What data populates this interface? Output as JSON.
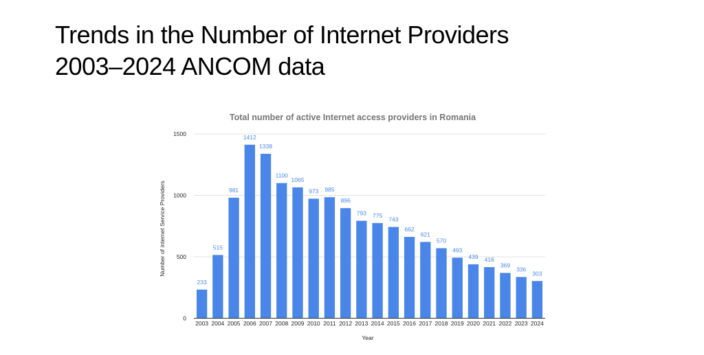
{
  "slide": {
    "title_line1": "Trends in the Number of Internet Providers",
    "title_line2": "2003–2024 ANCOM data"
  },
  "chart_data": {
    "type": "bar",
    "title": "Total number of active Internet access providers in Romania",
    "xlabel": "Year",
    "ylabel": "Number of internet Service Providers",
    "categories": [
      "2003",
      "2004",
      "2005",
      "2006",
      "2007",
      "2008",
      "2009",
      "2010",
      "2011",
      "2012",
      "2013",
      "2014",
      "2015",
      "2016",
      "2017",
      "2018",
      "2019",
      "2020",
      "2021",
      "2022",
      "2023",
      "2024"
    ],
    "values": [
      233,
      515,
      981,
      1412,
      1338,
      1100,
      1065,
      973,
      985,
      896,
      793,
      775,
      743,
      662,
      621,
      570,
      493,
      439,
      416,
      369,
      336,
      303
    ],
    "ylim": [
      0,
      1500
    ],
    "yticks": [
      0,
      500,
      1000,
      1500
    ],
    "grid": true,
    "data_labels": true,
    "legend": "none",
    "bar_color": "#4a86e8"
  }
}
